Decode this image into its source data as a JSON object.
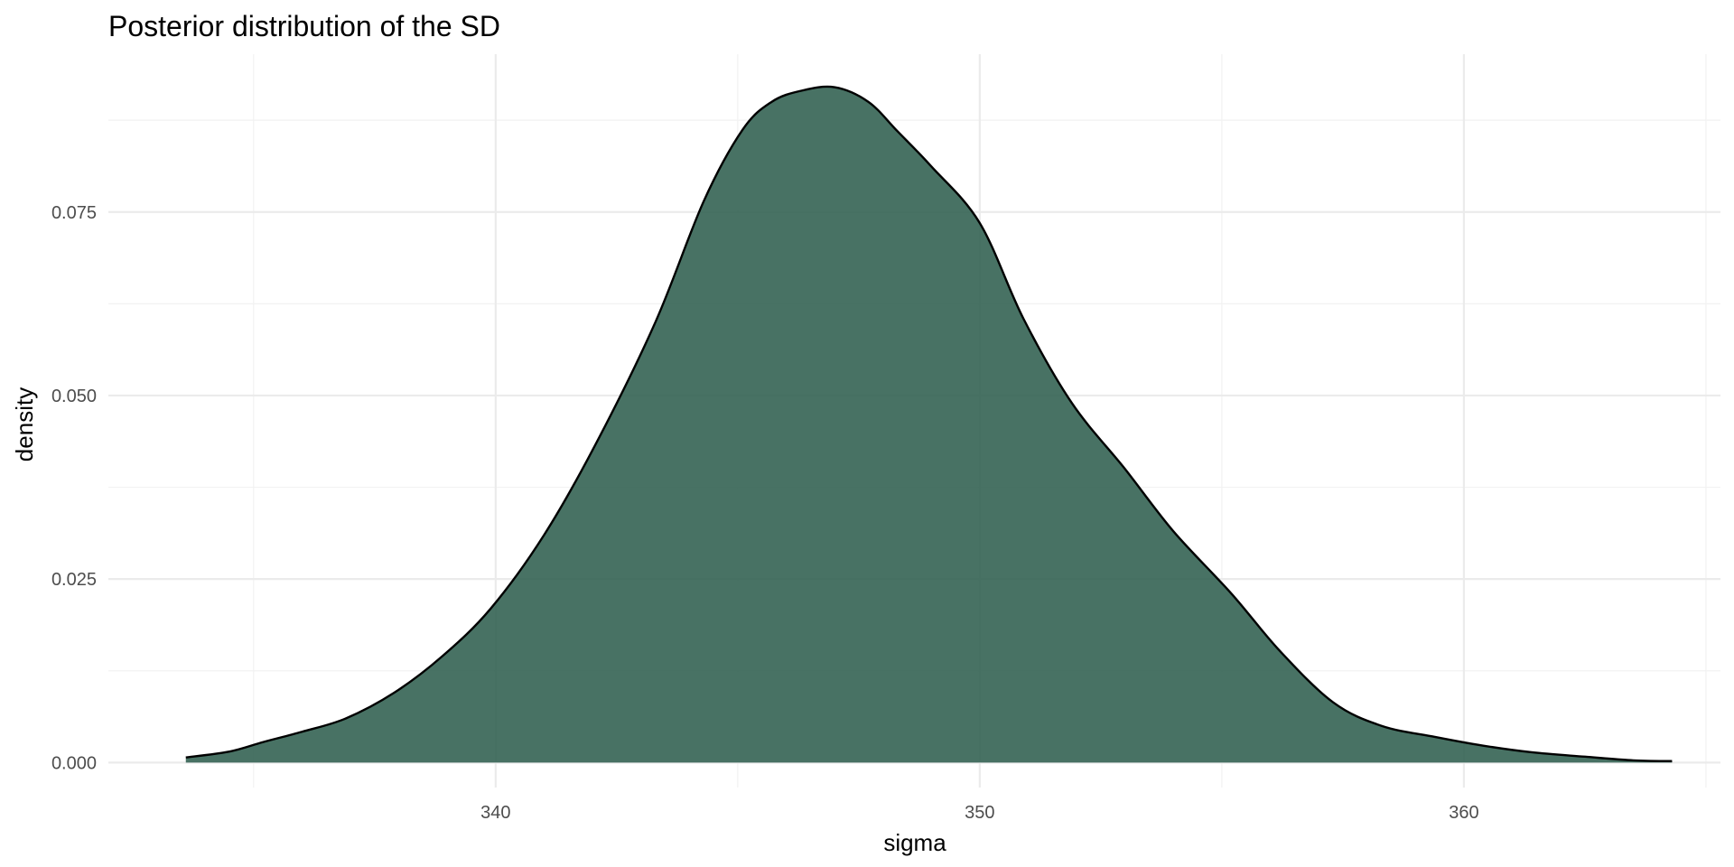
{
  "chart_data": {
    "type": "area",
    "title": "Posterior distribution of the SD",
    "xlabel": "sigma",
    "ylabel": "density",
    "xlim": [
      332.0,
      365.3
    ],
    "ylim": [
      -0.0034,
      0.0965
    ],
    "x_ticks": [
      340,
      350,
      360
    ],
    "x_tick_labels": [
      "340",
      "350",
      "360"
    ],
    "y_ticks": [
      0.0,
      0.025,
      0.05,
      0.075
    ],
    "y_tick_labels": [
      "0.000",
      "0.025",
      "0.050",
      "0.075"
    ],
    "grid": true,
    "legend": "none",
    "fill_color": "#2f5f4f",
    "fill_opacity": 0.88,
    "line_color": "#000000",
    "series": [
      {
        "x": [
          333.6,
          334.5,
          335.2,
          336.0,
          336.9,
          337.9,
          338.9,
          339.9,
          341.0,
          342.1,
          343.3,
          344.3,
          345.1,
          345.7,
          346.3,
          347.0,
          347.7,
          348.3,
          349.0,
          350.0,
          350.9,
          351.9,
          353.0,
          354.0,
          355.2,
          356.2,
          357.3,
          358.3,
          359.4,
          360.4,
          361.4,
          362.5,
          363.5,
          364.3
        ],
        "y": [
          0.0007,
          0.0015,
          0.0028,
          0.0042,
          0.006,
          0.0095,
          0.0145,
          0.021,
          0.031,
          0.0438,
          0.06,
          0.0765,
          0.0862,
          0.09,
          0.0915,
          0.092,
          0.09,
          0.086,
          0.0812,
          0.0735,
          0.0605,
          0.049,
          0.04,
          0.0315,
          0.023,
          0.0152,
          0.0082,
          0.005,
          0.0035,
          0.0023,
          0.0014,
          0.0008,
          0.0003,
          0.0002
        ]
      }
    ]
  }
}
